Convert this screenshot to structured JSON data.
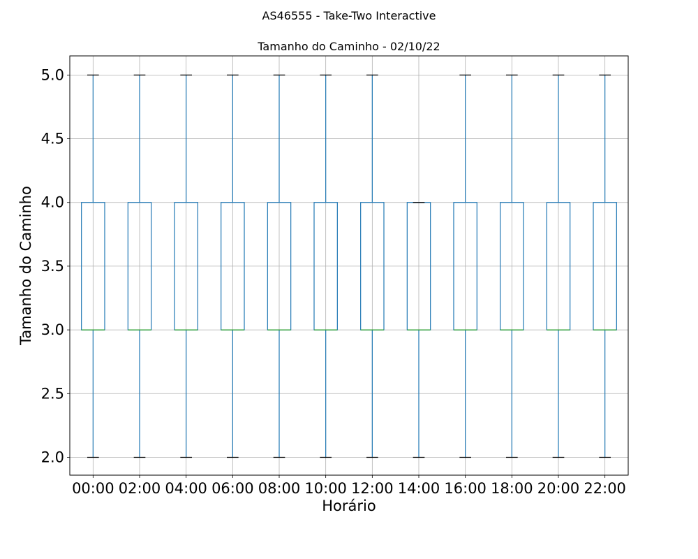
{
  "suptitle": "AS46555 - Take-Two Interactive",
  "chart_data": {
    "type": "box",
    "title": "Tamanho do Caminho - 02/10/22",
    "xlabel": "Horário",
    "ylabel": "Tamanho do Caminho",
    "ylim": [
      1.86,
      5.15
    ],
    "yticks": [
      "2.0",
      "2.5",
      "3.0",
      "3.5",
      "4.0",
      "4.5",
      "5.0"
    ],
    "grid": true,
    "categories": [
      "00:00",
      "02:00",
      "04:00",
      "06:00",
      "08:00",
      "10:00",
      "12:00",
      "14:00",
      "16:00",
      "18:00",
      "20:00",
      "22:00"
    ],
    "boxes": [
      {
        "whislo": 2,
        "q1": 3,
        "med": 3,
        "q3": 4,
        "whishi": 5
      },
      {
        "whislo": 2,
        "q1": 3,
        "med": 3,
        "q3": 4,
        "whishi": 5
      },
      {
        "whislo": 2,
        "q1": 3,
        "med": 3,
        "q3": 4,
        "whishi": 5
      },
      {
        "whislo": 2,
        "q1": 3,
        "med": 3,
        "q3": 4,
        "whishi": 5
      },
      {
        "whislo": 2,
        "q1": 3,
        "med": 3,
        "q3": 4,
        "whishi": 5
      },
      {
        "whislo": 2,
        "q1": 3,
        "med": 3,
        "q3": 4,
        "whishi": 5
      },
      {
        "whislo": 2,
        "q1": 3,
        "med": 3,
        "q3": 4,
        "whishi": 5
      },
      {
        "whislo": 2,
        "q1": 3,
        "med": 3,
        "q3": 4,
        "whishi": 4
      },
      {
        "whislo": 2,
        "q1": 3,
        "med": 3,
        "q3": 4,
        "whishi": 5
      },
      {
        "whislo": 2,
        "q1": 3,
        "med": 3,
        "q3": 4,
        "whishi": 5
      },
      {
        "whislo": 2,
        "q1": 3,
        "med": 3,
        "q3": 4,
        "whishi": 5
      },
      {
        "whislo": 2,
        "q1": 3,
        "med": 3,
        "q3": 4,
        "whishi": 5
      }
    ],
    "colors": {
      "box": "#1f77b4",
      "median": "#2ca02c",
      "cap": "#000000",
      "grid": "#b0b0b0"
    }
  }
}
